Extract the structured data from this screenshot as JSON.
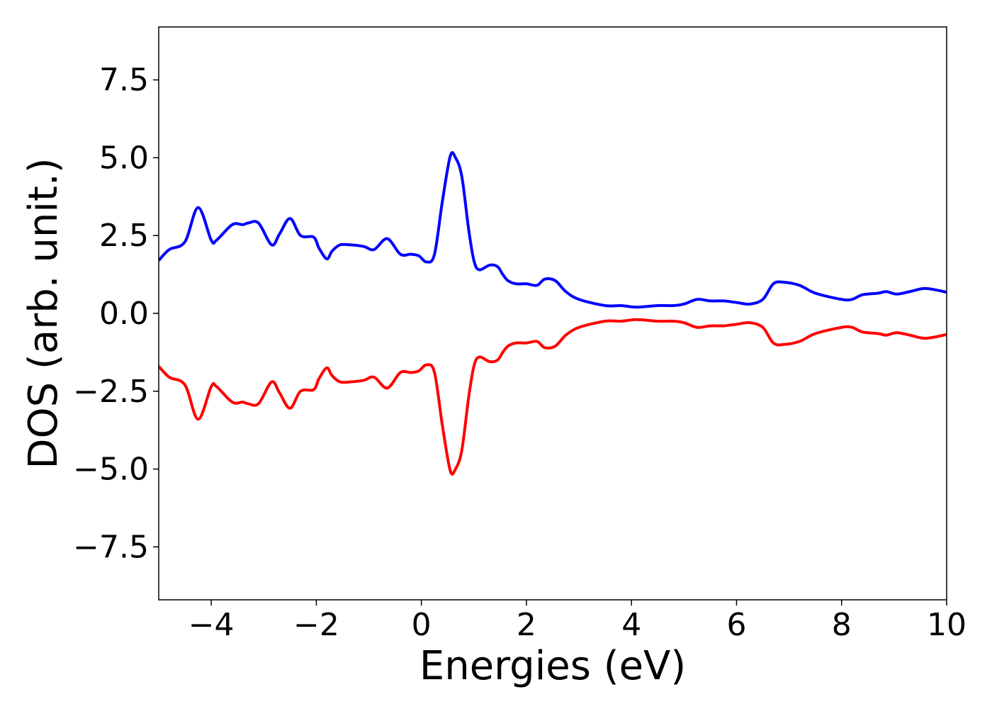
{
  "chart_data": {
    "type": "line",
    "title": "",
    "xlabel": "Energies (eV)",
    "ylabel": "DOS (arb. unit.)",
    "xlim": [
      -5,
      10
    ],
    "ylim": [
      -9.2,
      9.2
    ],
    "grid": false,
    "x_ticks": [
      -4,
      -2,
      0,
      2,
      4,
      6,
      8,
      10
    ],
    "x_tick_labels": [
      "−4",
      "−2",
      "0",
      "2",
      "4",
      "6",
      "8",
      "10"
    ],
    "y_ticks": [
      -7.5,
      -5.0,
      -2.5,
      0.0,
      2.5,
      5.0,
      7.5
    ],
    "y_tick_labels": [
      "−7.5",
      "−5.0",
      "−2.5",
      "0.0",
      "2.5",
      "5.0",
      "7.5"
    ],
    "colors": {
      "up": "#0000ff",
      "down": "#ff0000"
    },
    "series": [
      {
        "color": "#0000ff",
        "x": [
          -5.0,
          -4.8,
          -4.5,
          -4.25,
          -4.0,
          -3.9,
          -3.6,
          -3.4,
          -3.3,
          -3.1,
          -2.85,
          -2.7,
          -2.5,
          -2.3,
          -2.05,
          -1.95,
          -1.8,
          -1.7,
          -1.55,
          -1.35,
          -1.1,
          -0.9,
          -0.65,
          -0.4,
          -0.2,
          -0.05,
          0.1,
          0.25,
          0.4,
          0.55,
          0.65,
          0.77,
          0.9,
          1.0,
          1.1,
          1.3,
          1.45,
          1.55,
          1.65,
          1.8,
          2.0,
          2.2,
          2.35,
          2.55,
          2.75,
          3.0,
          3.5,
          3.8,
          4.1,
          4.5,
          4.8,
          5.0,
          5.25,
          5.5,
          5.75,
          6.0,
          6.25,
          6.5,
          6.7,
          6.9,
          7.2,
          7.5,
          8.0,
          8.2,
          8.4,
          8.7,
          8.85,
          9.05,
          9.3,
          9.6,
          10.0
        ],
        "values": [
          1.7,
          2.05,
          2.3,
          3.4,
          2.35,
          2.35,
          2.85,
          2.85,
          2.9,
          2.9,
          2.2,
          2.55,
          3.05,
          2.5,
          2.45,
          2.1,
          1.75,
          2.0,
          2.2,
          2.2,
          2.15,
          2.05,
          2.4,
          1.9,
          1.9,
          1.85,
          1.65,
          1.9,
          3.6,
          5.05,
          5.0,
          4.4,
          2.7,
          1.7,
          1.4,
          1.55,
          1.5,
          1.25,
          1.05,
          0.95,
          0.95,
          0.9,
          1.1,
          1.05,
          0.7,
          0.45,
          0.25,
          0.25,
          0.2,
          0.25,
          0.25,
          0.3,
          0.45,
          0.4,
          0.4,
          0.35,
          0.3,
          0.45,
          0.95,
          1.0,
          0.9,
          0.65,
          0.45,
          0.45,
          0.6,
          0.65,
          0.7,
          0.62,
          0.7,
          0.8,
          0.68
        ]
      },
      {
        "color": "#ff0000",
        "x": [
          -5.0,
          -4.8,
          -4.5,
          -4.25,
          -4.0,
          -3.9,
          -3.6,
          -3.4,
          -3.3,
          -3.1,
          -2.85,
          -2.7,
          -2.5,
          -2.3,
          -2.05,
          -1.95,
          -1.8,
          -1.7,
          -1.55,
          -1.35,
          -1.1,
          -0.9,
          -0.65,
          -0.4,
          -0.2,
          -0.05,
          0.1,
          0.25,
          0.4,
          0.55,
          0.65,
          0.77,
          0.9,
          1.0,
          1.1,
          1.3,
          1.45,
          1.55,
          1.65,
          1.8,
          2.0,
          2.2,
          2.35,
          2.55,
          2.75,
          3.0,
          3.5,
          3.8,
          4.1,
          4.5,
          4.8,
          5.0,
          5.25,
          5.5,
          5.75,
          6.0,
          6.25,
          6.5,
          6.7,
          6.9,
          7.2,
          7.5,
          8.0,
          8.2,
          8.4,
          8.7,
          8.85,
          9.05,
          9.3,
          9.6,
          10.0
        ],
        "values": [
          -1.7,
          -2.05,
          -2.3,
          -3.4,
          -2.35,
          -2.35,
          -2.85,
          -2.85,
          -2.9,
          -2.9,
          -2.2,
          -2.55,
          -3.05,
          -2.5,
          -2.45,
          -2.1,
          -1.75,
          -2.0,
          -2.2,
          -2.2,
          -2.15,
          -2.05,
          -2.4,
          -1.9,
          -1.9,
          -1.85,
          -1.65,
          -1.9,
          -3.6,
          -5.05,
          -5.0,
          -4.4,
          -2.7,
          -1.7,
          -1.4,
          -1.55,
          -1.5,
          -1.25,
          -1.05,
          -0.95,
          -0.95,
          -0.9,
          -1.1,
          -1.05,
          -0.7,
          -0.45,
          -0.25,
          -0.25,
          -0.2,
          -0.25,
          -0.25,
          -0.3,
          -0.45,
          -0.4,
          -0.4,
          -0.35,
          -0.3,
          -0.45,
          -0.95,
          -1.0,
          -0.9,
          -0.65,
          -0.45,
          -0.45,
          -0.6,
          -0.65,
          -0.7,
          -0.62,
          -0.7,
          -0.8,
          -0.68
        ]
      }
    ]
  }
}
